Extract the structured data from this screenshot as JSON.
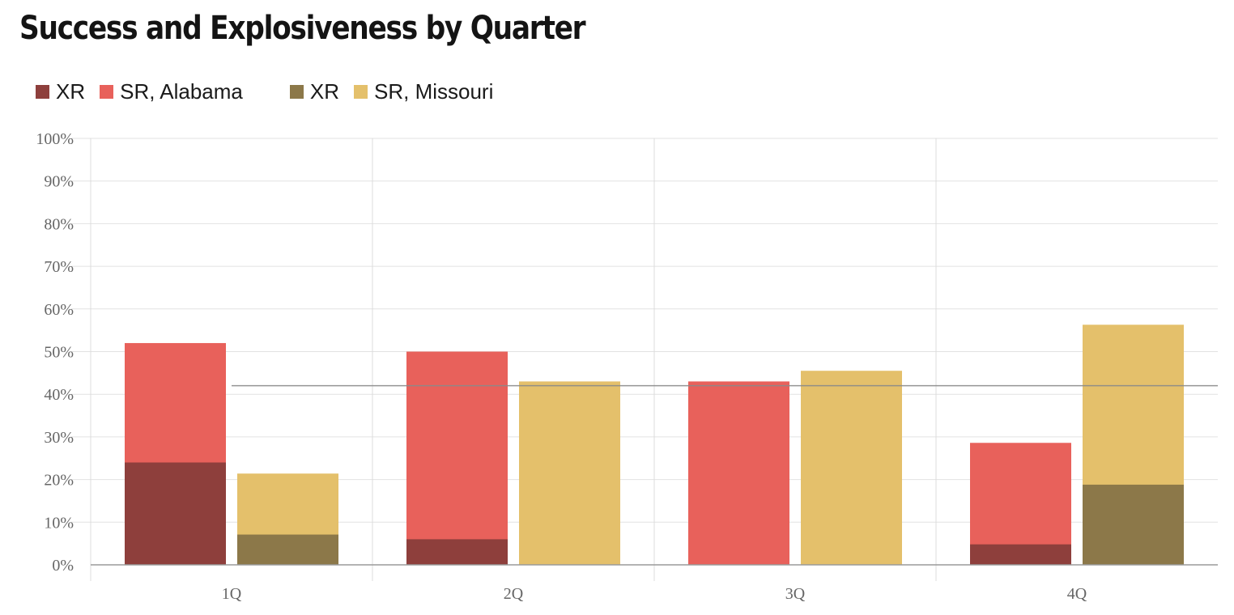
{
  "chart_data": {
    "type": "bar",
    "title": "Success and Explosiveness by Quarter",
    "categories": [
      "1Q",
      "2Q",
      "3Q",
      "4Q"
    ],
    "legend": [
      {
        "label": "XR",
        "color": "#8e3f3c"
      },
      {
        "label": "SR, Alabama",
        "color": "#e8615b"
      },
      {
        "label": "XR",
        "color": "#8c7849"
      },
      {
        "label": "SR, Missouri",
        "color": "#e4c06b"
      }
    ],
    "teams": [
      {
        "name": "Alabama",
        "series": [
          {
            "name": "SR",
            "values": [
              52,
              50,
              43,
              28.6
            ],
            "color": "#e8615b"
          },
          {
            "name": "XR",
            "values": [
              24,
              6,
              0,
              4.8
            ],
            "color": "#8e3f3c"
          }
        ]
      },
      {
        "name": "Missouri",
        "series": [
          {
            "name": "SR",
            "values": [
              21.4,
              43,
              45.5,
              56.3
            ],
            "color": "#e4c06b"
          },
          {
            "name": "XR",
            "values": [
              7.1,
              0,
              0,
              18.8
            ],
            "color": "#8c7849"
          }
        ]
      }
    ],
    "reference_line": 42,
    "xlabel": "",
    "ylabel": "",
    "ylim": [
      0,
      100
    ],
    "yticks": [
      "0%",
      "10%",
      "20%",
      "30%",
      "40%",
      "50%",
      "60%",
      "70%",
      "80%",
      "90%",
      "100%"
    ],
    "grid": true
  }
}
